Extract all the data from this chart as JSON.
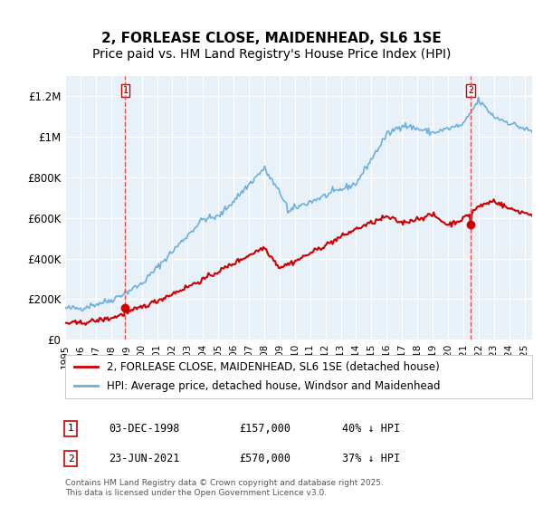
{
  "title": "2, FORLEASE CLOSE, MAIDENHEAD, SL6 1SE",
  "subtitle": "Price paid vs. HM Land Registry's House Price Index (HPI)",
  "ylabel": "",
  "ylim": [
    0,
    1300000
  ],
  "yticks": [
    0,
    200000,
    400000,
    600000,
    800000,
    1000000,
    1200000
  ],
  "ytick_labels": [
    "£0",
    "£200K",
    "£400K",
    "£600K",
    "£800K",
    "£1M",
    "£1.2M"
  ],
  "background_color": "#e8f0f8",
  "plot_bg_color": "#e8f0f8",
  "hpi_color": "#6ab0e0",
  "price_color": "#cc0000",
  "marker_color": "#cc0000",
  "vline_color": "#ff4444",
  "legend_label_red": "2, FORLEASE CLOSE, MAIDENHEAD, SL6 1SE (detached house)",
  "legend_label_blue": "HPI: Average price, detached house, Windsor and Maidenhead",
  "point1_date_idx": 47,
  "point1_value": 157000,
  "point2_date_idx": 317,
  "point2_value": 570000,
  "table_data": [
    {
      "num": "1",
      "date": "03-DEC-1998",
      "price": "£157,000",
      "hpi": "40% ↓ HPI"
    },
    {
      "num": "2",
      "date": "23-JUN-2021",
      "price": "£570,000",
      "hpi": "37% ↓ HPI"
    }
  ],
  "footer": "Contains HM Land Registry data © Crown copyright and database right 2025.\nThis data is licensed under the Open Government Licence v3.0.",
  "title_fontsize": 11,
  "subtitle_fontsize": 10,
  "tick_fontsize": 8.5,
  "legend_fontsize": 8.5
}
